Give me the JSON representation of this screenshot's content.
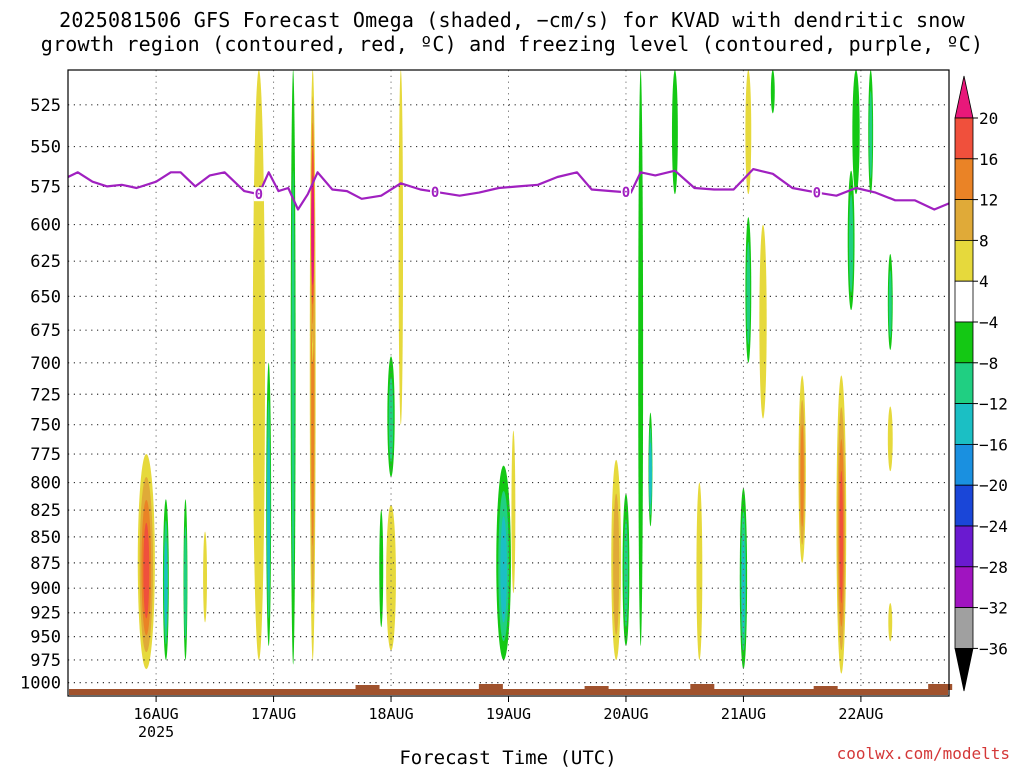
{
  "title": {
    "line1": "2025081506 GFS Forecast Omega (shaded, −cm/s) for KVAD with dendritic snow",
    "line2": "growth region (contoured, red, ºC) and freezing level (contoured, purple, ºC)"
  },
  "credit": "coolwx.com/modelts",
  "chart_data": {
    "type": "heatmap",
    "title": "2025081506 GFS Forecast Omega (shaded, −cm/s) for KVAD with dendritic snow growth region (contoured, red, ºC) and freezing level (contoured, purple, ºC)",
    "xlabel": "Forecast Time (UTC)",
    "ylabel": "",
    "x_start": "2025-08-15 06Z",
    "x_end": "2025-08-22 18Z",
    "x_ticks": [
      {
        "label": "16AUG",
        "sublabel": "2025",
        "date": "2025-08-16"
      },
      {
        "label": "17AUG",
        "sublabel": "",
        "date": "2025-08-17"
      },
      {
        "label": "18AUG",
        "sublabel": "",
        "date": "2025-08-18"
      },
      {
        "label": "19AUG",
        "sublabel": "",
        "date": "2025-08-19"
      },
      {
        "label": "20AUG",
        "sublabel": "",
        "date": "2025-08-20"
      },
      {
        "label": "21AUG",
        "sublabel": "",
        "date": "2025-08-21"
      },
      {
        "label": "22AUG",
        "sublabel": "",
        "date": "2025-08-22"
      }
    ],
    "y_axis": {
      "type": "log-pressure",
      "unit": "hPa",
      "range": [
        1015,
        505
      ],
      "inverted": true,
      "ticks": [
        525,
        550,
        575,
        600,
        625,
        650,
        675,
        700,
        725,
        750,
        775,
        800,
        825,
        850,
        875,
        900,
        925,
        950,
        975,
        1000
      ]
    },
    "grid": true,
    "colorbar": {
      "labels": [
        "20",
        "16",
        "12",
        "8",
        "4",
        "−4",
        "−8",
        "−12",
        "−16",
        "−20",
        "−24",
        "−28",
        "−32",
        "−36"
      ],
      "bins": [
        {
          "range": [
            20,
            99
          ],
          "color": "#e8187a"
        },
        {
          "range": [
            16,
            20
          ],
          "color": "#f0503c"
        },
        {
          "range": [
            12,
            16
          ],
          "color": "#ea8326"
        },
        {
          "range": [
            8,
            12
          ],
          "color": "#e0aa38"
        },
        {
          "range": [
            4,
            8
          ],
          "color": "#e6d93c"
        },
        {
          "range": [
            -4,
            4
          ],
          "color": "#ffffff"
        },
        {
          "range": [
            -8,
            -4
          ],
          "color": "#14c814"
        },
        {
          "range": [
            -12,
            -8
          ],
          "color": "#20cf82"
        },
        {
          "range": [
            -16,
            -12
          ],
          "color": "#1bbfc4"
        },
        {
          "range": [
            -20,
            -16
          ],
          "color": "#1a90e0"
        },
        {
          "range": [
            -24,
            -20
          ],
          "color": "#1a46d8"
        },
        {
          "range": [
            -28,
            -24
          ],
          "color": "#6a1ad0"
        },
        {
          "range": [
            -32,
            -28
          ],
          "color": "#a014c0"
        },
        {
          "range": [
            -36,
            -32
          ],
          "color": "#a0a0a0"
        },
        {
          "range": [
            -99,
            -36
          ],
          "color": "#000000"
        }
      ]
    },
    "freezing_level": {
      "color": "#a020c0",
      "label": "0",
      "label_times": [
        "2025-08-16 21Z",
        "2025-08-18 09Z",
        "2025-08-20 00Z",
        "2025-08-21 15Z"
      ],
      "points": [
        [
          "2025-08-15 06Z",
          569
        ],
        [
          "2025-08-15 08Z",
          566
        ],
        [
          "2025-08-15 11Z",
          572
        ],
        [
          "2025-08-15 14Z",
          575
        ],
        [
          "2025-08-15 17Z",
          574
        ],
        [
          "2025-08-15 20Z",
          576
        ],
        [
          "2025-08-16 00Z",
          572
        ],
        [
          "2025-08-16 03Z",
          566
        ],
        [
          "2025-08-16 05Z",
          566
        ],
        [
          "2025-08-16 08Z",
          575
        ],
        [
          "2025-08-16 11Z",
          568
        ],
        [
          "2025-08-16 14Z",
          566
        ],
        [
          "2025-08-16 18Z",
          578
        ],
        [
          "2025-08-16 21Z",
          580
        ],
        [
          "2025-08-16 23Z",
          566
        ],
        [
          "2025-08-17 01Z",
          578
        ],
        [
          "2025-08-17 03Z",
          576
        ],
        [
          "2025-08-17 05Z",
          590
        ],
        [
          "2025-08-17 07Z",
          580
        ],
        [
          "2025-08-17 09Z",
          566
        ],
        [
          "2025-08-17 12Z",
          577
        ],
        [
          "2025-08-17 15Z",
          578
        ],
        [
          "2025-08-17 18Z",
          583
        ],
        [
          "2025-08-17 22Z",
          581
        ],
        [
          "2025-08-18 02Z",
          573
        ],
        [
          "2025-08-18 06Z",
          577
        ],
        [
          "2025-08-18 10Z",
          579
        ],
        [
          "2025-08-18 14Z",
          581
        ],
        [
          "2025-08-18 18Z",
          579
        ],
        [
          "2025-08-18 22Z",
          576
        ],
        [
          "2025-08-19 02Z",
          575
        ],
        [
          "2025-08-19 06Z",
          574
        ],
        [
          "2025-08-19 10Z",
          569
        ],
        [
          "2025-08-19 14Z",
          566
        ],
        [
          "2025-08-19 17Z",
          577
        ],
        [
          "2025-08-19 21Z",
          578
        ],
        [
          "2025-08-20 01Z",
          579
        ],
        [
          "2025-08-20 03Z",
          566
        ],
        [
          "2025-08-20 06Z",
          568
        ],
        [
          "2025-08-20 10Z",
          565
        ],
        [
          "2025-08-20 14Z",
          576
        ],
        [
          "2025-08-20 18Z",
          577
        ],
        [
          "2025-08-20 22Z",
          577
        ],
        [
          "2025-08-21 02Z",
          564
        ],
        [
          "2025-08-21 06Z",
          567
        ],
        [
          "2025-08-21 10Z",
          576
        ],
        [
          "2025-08-21 15Z",
          579
        ],
        [
          "2025-08-21 19Z",
          581
        ],
        [
          "2025-08-21 23Z",
          576
        ],
        [
          "2025-08-22 03Z",
          579
        ],
        [
          "2025-08-22 07Z",
          584
        ],
        [
          "2025-08-22 11Z",
          584
        ],
        [
          "2025-08-22 15Z",
          590
        ],
        [
          "2025-08-22 18Z",
          586
        ]
      ]
    },
    "omega_cells": [
      {
        "time": "2025-08-15 22Z",
        "width_h": 3.5,
        "top": 775,
        "bottom": 985,
        "value": 18
      },
      {
        "time": "2025-08-16 02Z",
        "width_h": 1.2,
        "top": 815,
        "bottom": 975,
        "value": -12
      },
      {
        "time": "2025-08-16 06Z",
        "width_h": 0.8,
        "top": 815,
        "bottom": 975,
        "value": -10
      },
      {
        "time": "2025-08-16 10Z",
        "width_h": 0.8,
        "top": 845,
        "bottom": 935,
        "value": 5
      },
      {
        "time": "2025-08-16 21Z",
        "width_h": 2.5,
        "top": 505,
        "bottom": 975,
        "value": 6
      },
      {
        "time": "2025-08-16 23Z",
        "width_h": 1.0,
        "top": 700,
        "bottom": 960,
        "value": -14
      },
      {
        "time": "2025-08-17 04Z",
        "width_h": 1.0,
        "top": 505,
        "bottom": 980,
        "value": -8
      },
      {
        "time": "2025-08-17 08Z",
        "width_h": 1.2,
        "top": 505,
        "bottom": 975,
        "value": 14
      },
      {
        "time": "2025-08-17 08Z",
        "width_h": 0.5,
        "top": 505,
        "bottom": 700,
        "value": 20
      },
      {
        "time": "2025-08-18 00Z",
        "width_h": 1.5,
        "top": 695,
        "bottom": 795,
        "value": -10
      },
      {
        "time": "2025-08-17 22Z",
        "width_h": 0.8,
        "top": 825,
        "bottom": 940,
        "value": -6
      },
      {
        "time": "2025-08-18 00Z",
        "width_h": 2.0,
        "top": 820,
        "bottom": 965,
        "value": 6
      },
      {
        "time": "2025-08-18 02Z",
        "width_h": 0.9,
        "top": 505,
        "bottom": 750,
        "value": 5
      },
      {
        "time": "2025-08-18 23Z",
        "width_h": 3.0,
        "top": 785,
        "bottom": 975,
        "value": -12
      },
      {
        "time": "2025-08-19 01Z",
        "width_h": 0.8,
        "top": 755,
        "bottom": 905,
        "value": 5
      },
      {
        "time": "2025-08-19 22Z",
        "width_h": 2.0,
        "top": 780,
        "bottom": 975,
        "value": 10
      },
      {
        "time": "2025-08-20 00Z",
        "width_h": 1.4,
        "top": 810,
        "bottom": 960,
        "value": -10
      },
      {
        "time": "2025-08-20 03Z",
        "width_h": 1.0,
        "top": 505,
        "bottom": 960,
        "value": -6
      },
      {
        "time": "2025-08-20 05Z",
        "width_h": 0.8,
        "top": 740,
        "bottom": 840,
        "value": -14
      },
      {
        "time": "2025-08-20 10Z",
        "width_h": 1.2,
        "top": 505,
        "bottom": 580,
        "value": -6
      },
      {
        "time": "2025-08-20 15Z",
        "width_h": 1.2,
        "top": 800,
        "bottom": 975,
        "value": 6
      },
      {
        "time": "2025-08-21 00Z",
        "width_h": 1.5,
        "top": 805,
        "bottom": 985,
        "value": -14
      },
      {
        "time": "2025-08-21 01Z",
        "width_h": 1.2,
        "top": 505,
        "bottom": 580,
        "value": 5
      },
      {
        "time": "2025-08-21 01Z",
        "width_h": 1.2,
        "top": 595,
        "bottom": 700,
        "value": -8
      },
      {
        "time": "2025-08-21 04Z",
        "width_h": 1.5,
        "top": 600,
        "bottom": 745,
        "value": 5
      },
      {
        "time": "2025-08-21 06Z",
        "width_h": 0.8,
        "top": 505,
        "bottom": 530,
        "value": -6
      },
      {
        "time": "2025-08-21 12Z",
        "width_h": 1.5,
        "top": 710,
        "bottom": 875,
        "value": 14
      },
      {
        "time": "2025-08-21 20Z",
        "width_h": 2.0,
        "top": 710,
        "bottom": 990,
        "value": 18
      },
      {
        "time": "2025-08-21 23Z",
        "width_h": 1.5,
        "top": 505,
        "bottom": 580,
        "value": -6
      },
      {
        "time": "2025-08-21 22Z",
        "width_h": 1.4,
        "top": 565,
        "bottom": 660,
        "value": -8
      },
      {
        "time": "2025-08-22 02Z",
        "width_h": 1.0,
        "top": 505,
        "bottom": 580,
        "value": -8
      },
      {
        "time": "2025-08-22 06Z",
        "width_h": 1.0,
        "top": 620,
        "bottom": 690,
        "value": -10
      },
      {
        "time": "2025-08-22 06Z",
        "width_h": 1.0,
        "top": 735,
        "bottom": 790,
        "value": 5
      },
      {
        "time": "2025-08-22 06Z",
        "width_h": 0.8,
        "top": 915,
        "bottom": 955,
        "value": 5
      }
    ],
    "terrain": {
      "color": "#a0522d"
    }
  }
}
